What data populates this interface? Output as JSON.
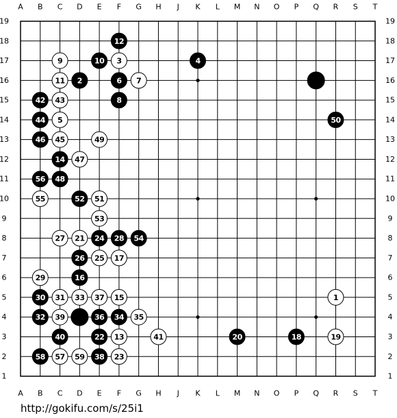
{
  "board": {
    "columns": [
      "A",
      "B",
      "C",
      "D",
      "E",
      "F",
      "G",
      "H",
      "J",
      "K",
      "L",
      "M",
      "N",
      "O",
      "P",
      "Q",
      "R",
      "S",
      "T"
    ],
    "rows": [
      19,
      18,
      17,
      16,
      15,
      14,
      13,
      12,
      11,
      10,
      9,
      8,
      7,
      6,
      5,
      4,
      3,
      2,
      1
    ],
    "hoshi": [
      [
        "K",
        16
      ],
      [
        "K",
        10
      ],
      [
        "Q",
        10
      ],
      [
        "K",
        4
      ],
      [
        "Q",
        4
      ]
    ],
    "stones": [
      {
        "color": "black",
        "col": "F",
        "row": 18,
        "label": 12
      },
      {
        "color": "white",
        "col": "C",
        "row": 17,
        "label": 9
      },
      {
        "color": "black",
        "col": "E",
        "row": 17,
        "label": 10
      },
      {
        "color": "white",
        "col": "F",
        "row": 17,
        "label": 3
      },
      {
        "color": "black",
        "col": "K",
        "row": 17,
        "label": 4
      },
      {
        "color": "white",
        "col": "C",
        "row": 16,
        "label": 11
      },
      {
        "color": "black",
        "col": "D",
        "row": 16,
        "label": 2
      },
      {
        "color": "black",
        "col": "F",
        "row": 16,
        "label": 6
      },
      {
        "color": "white",
        "col": "G",
        "row": 16,
        "label": 7
      },
      {
        "color": "black",
        "col": "Q",
        "row": 16
      },
      {
        "color": "black",
        "col": "B",
        "row": 15,
        "label": 42
      },
      {
        "color": "white",
        "col": "C",
        "row": 15,
        "label": 43
      },
      {
        "color": "black",
        "col": "F",
        "row": 15,
        "label": 8
      },
      {
        "color": "black",
        "col": "B",
        "row": 14,
        "label": 44
      },
      {
        "color": "white",
        "col": "C",
        "row": 14,
        "label": 5
      },
      {
        "color": "black",
        "col": "R",
        "row": 14,
        "label": 50
      },
      {
        "color": "black",
        "col": "B",
        "row": 13,
        "label": 46
      },
      {
        "color": "white",
        "col": "C",
        "row": 13,
        "label": 45
      },
      {
        "color": "white",
        "col": "E",
        "row": 13,
        "label": 49
      },
      {
        "color": "black",
        "col": "C",
        "row": 12,
        "label": 14
      },
      {
        "color": "white",
        "col": "D",
        "row": 12,
        "label": 47
      },
      {
        "color": "black",
        "col": "B",
        "row": 11,
        "label": 56
      },
      {
        "color": "black",
        "col": "C",
        "row": 11,
        "label": 48
      },
      {
        "color": "white",
        "col": "B",
        "row": 10,
        "label": 55
      },
      {
        "color": "black",
        "col": "D",
        "row": 10,
        "label": 52
      },
      {
        "color": "white",
        "col": "E",
        "row": 10,
        "label": 51
      },
      {
        "color": "white",
        "col": "E",
        "row": 9,
        "label": 53
      },
      {
        "color": "white",
        "col": "C",
        "row": 8,
        "label": 27
      },
      {
        "color": "white",
        "col": "D",
        "row": 8,
        "label": 21
      },
      {
        "color": "black",
        "col": "E",
        "row": 8,
        "label": 24
      },
      {
        "color": "black",
        "col": "F",
        "row": 8,
        "label": 28
      },
      {
        "color": "black",
        "col": "G",
        "row": 8,
        "label": 54
      },
      {
        "color": "black",
        "col": "D",
        "row": 7,
        "label": 26
      },
      {
        "color": "white",
        "col": "E",
        "row": 7,
        "label": 25
      },
      {
        "color": "white",
        "col": "F",
        "row": 7,
        "label": 17
      },
      {
        "color": "white",
        "col": "B",
        "row": 6,
        "label": 29
      },
      {
        "color": "black",
        "col": "D",
        "row": 6,
        "label": 16
      },
      {
        "color": "black",
        "col": "B",
        "row": 5,
        "label": 30
      },
      {
        "color": "white",
        "col": "C",
        "row": 5,
        "label": 31
      },
      {
        "color": "white",
        "col": "D",
        "row": 5,
        "label": 33
      },
      {
        "color": "white",
        "col": "E",
        "row": 5,
        "label": 37
      },
      {
        "color": "white",
        "col": "F",
        "row": 5,
        "label": 15
      },
      {
        "color": "white",
        "col": "R",
        "row": 5,
        "label": 1
      },
      {
        "color": "black",
        "col": "B",
        "row": 4,
        "label": 32
      },
      {
        "color": "white",
        "col": "C",
        "row": 4,
        "label": 39
      },
      {
        "color": "black",
        "col": "D",
        "row": 4
      },
      {
        "color": "black",
        "col": "E",
        "row": 4,
        "label": 36
      },
      {
        "color": "black",
        "col": "F",
        "row": 4,
        "label": 34
      },
      {
        "color": "white",
        "col": "G",
        "row": 4,
        "label": 35
      },
      {
        "color": "black",
        "col": "C",
        "row": 3,
        "label": 40
      },
      {
        "color": "black",
        "col": "E",
        "row": 3,
        "label": 22
      },
      {
        "color": "white",
        "col": "F",
        "row": 3,
        "label": 13
      },
      {
        "color": "white",
        "col": "H",
        "row": 3,
        "label": 41
      },
      {
        "color": "black",
        "col": "M",
        "row": 3,
        "label": 20
      },
      {
        "color": "black",
        "col": "P",
        "row": 3,
        "label": 18
      },
      {
        "color": "white",
        "col": "R",
        "row": 3,
        "label": 19
      },
      {
        "color": "black",
        "col": "B",
        "row": 2,
        "label": 58
      },
      {
        "color": "white",
        "col": "C",
        "row": 2,
        "label": 57
      },
      {
        "color": "white",
        "col": "D",
        "row": 2,
        "label": 59
      },
      {
        "color": "black",
        "col": "E",
        "row": 2,
        "label": 38
      },
      {
        "color": "white",
        "col": "F",
        "row": 2,
        "label": 23
      }
    ]
  },
  "footer": {
    "url": "http://gokifu.com/s/25i1"
  }
}
